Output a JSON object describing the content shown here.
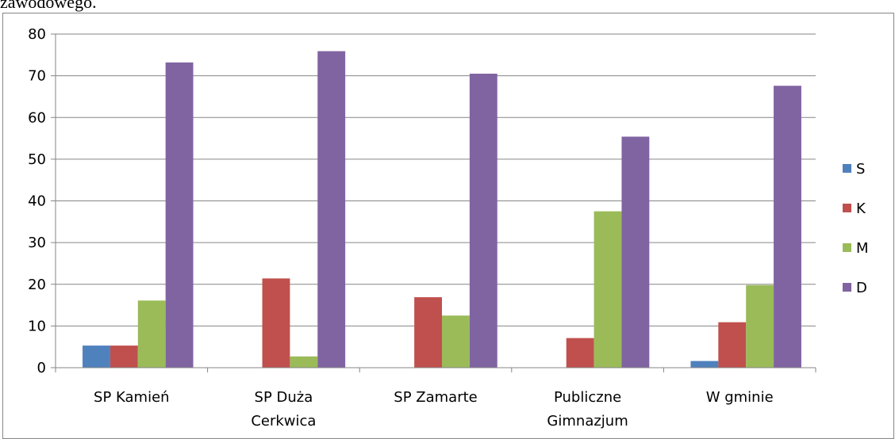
{
  "page_text": "zawodowego.",
  "chart_data": {
    "type": "bar",
    "categories": [
      "SP Kamień",
      "SP Duża Cerkwica",
      "SP Zamarte",
      "Publiczne Gimnazjum",
      "W gminie"
    ],
    "series": [
      {
        "name": "S",
        "color": "#4f81bd",
        "values": [
          5.3,
          0,
          0,
          0,
          1.6
        ]
      },
      {
        "name": "K",
        "color": "#c0504d",
        "values": [
          5.3,
          21.4,
          16.9,
          7.1,
          10.9
        ]
      },
      {
        "name": "M",
        "color": "#9bbb59",
        "values": [
          16.1,
          2.7,
          12.5,
          37.5,
          19.8
        ]
      },
      {
        "name": "D",
        "color": "#8064a2",
        "values": [
          73.2,
          75.9,
          70.5,
          55.4,
          67.6
        ]
      }
    ],
    "ylim": [
      0,
      80
    ],
    "yticks": [
      0,
      10,
      20,
      30,
      40,
      50,
      60,
      70,
      80
    ],
    "grid": true,
    "legend": "right"
  }
}
